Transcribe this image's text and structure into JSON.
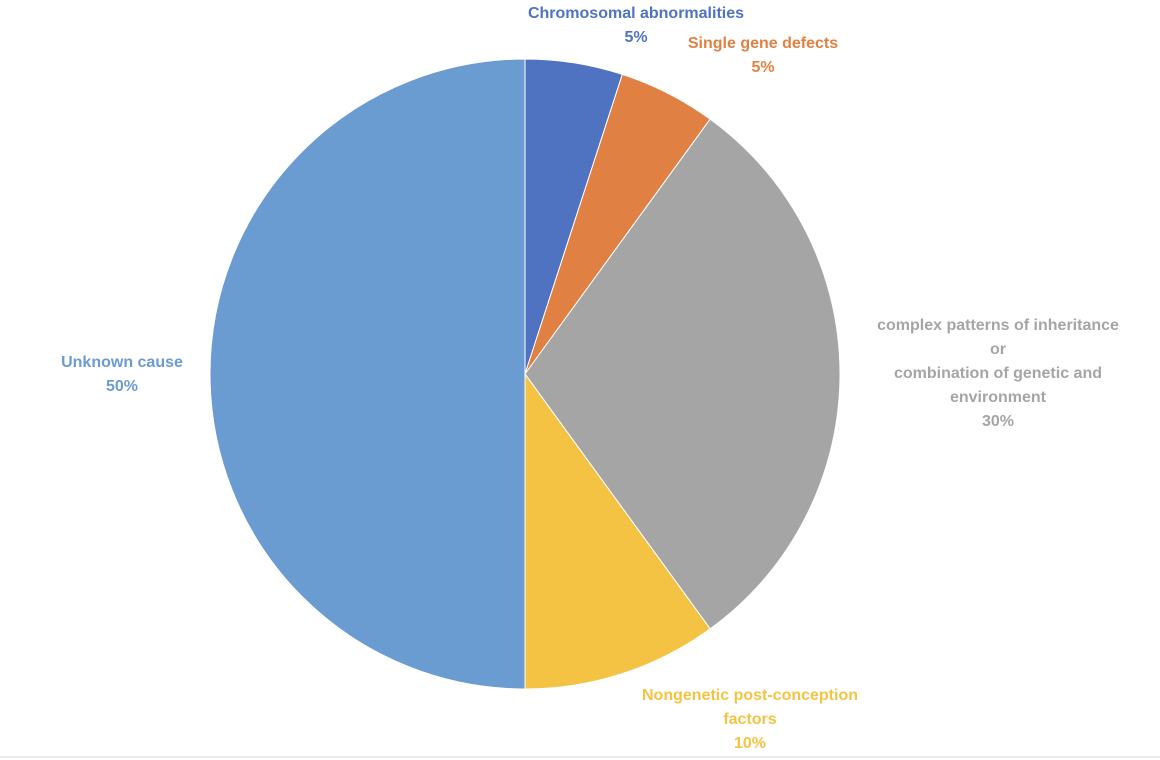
{
  "chart_data": {
    "type": "pie",
    "categories": [
      "Chromosomal abnormalities",
      "Single gene defects",
      "complex patterns of inheritance\nor\ncombination of genetic and\nenvironment",
      "Nongenetic post-conception\nfactors",
      "Unknown cause"
    ],
    "values": [
      5,
      5,
      30,
      10,
      50
    ],
    "value_labels": [
      "5%",
      "5%",
      "30%",
      "10%",
      "50%"
    ],
    "colors": [
      "#4f73c0",
      "#e08042",
      "#a5a5a5",
      "#f4c343",
      "#6a9bd1"
    ]
  }
}
